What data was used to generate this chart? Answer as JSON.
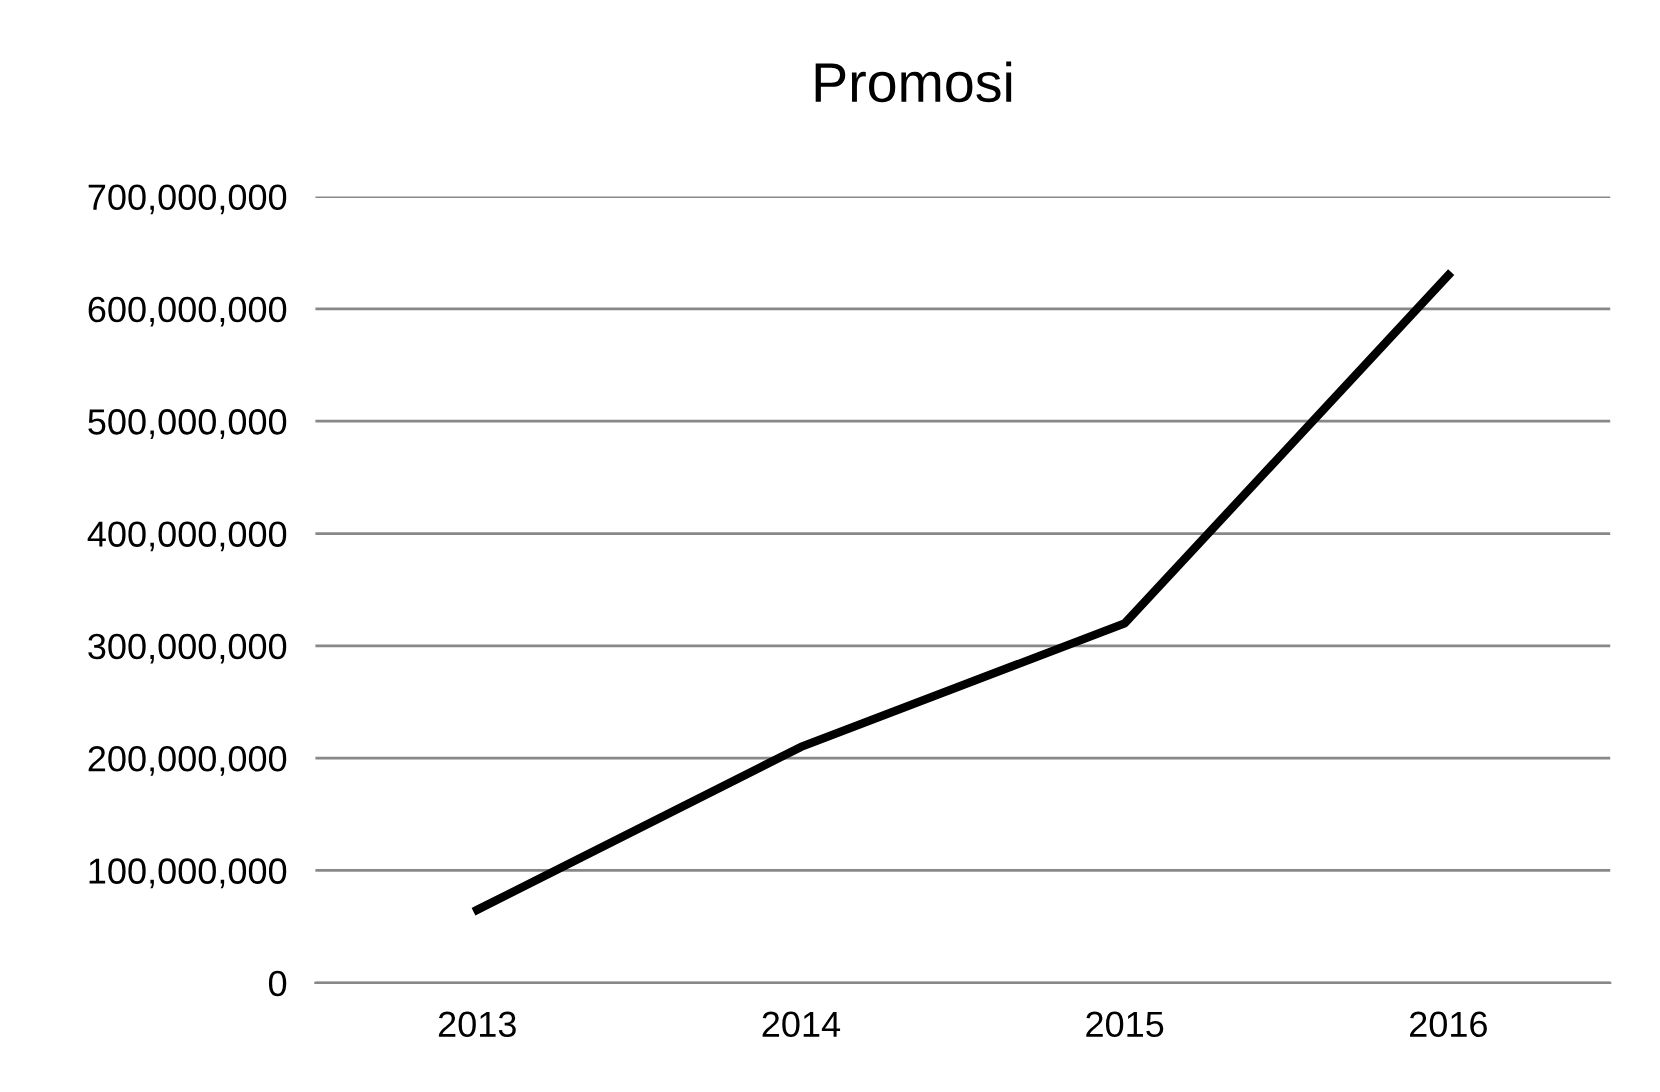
{
  "chart_data": {
    "type": "line",
    "title": "Promosi",
    "categories": [
      "2013",
      "2014",
      "2015",
      "2016"
    ],
    "series": [
      {
        "color": "#000000",
        "values": [
          65000000,
          210000000,
          320000000,
          630000000
        ]
      }
    ],
    "ylim": [
      0,
      700000000
    ],
    "yticks": [
      {
        "value": 0,
        "label": "0"
      },
      {
        "value": 100000000,
        "label": "100,000,000"
      },
      {
        "value": 200000000,
        "label": "200,000,000"
      },
      {
        "value": 300000000,
        "label": "300,000,000"
      },
      {
        "value": 400000000,
        "label": "400,000,000"
      },
      {
        "value": 500000000,
        "label": "500,000,000"
      },
      {
        "value": 600000000,
        "label": "600,000,000"
      },
      {
        "value": 700000000,
        "label": "700,000,000"
      }
    ],
    "grid": "y",
    "marker": "none",
    "line_style": "solid"
  }
}
